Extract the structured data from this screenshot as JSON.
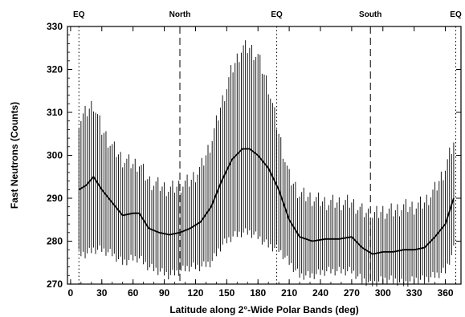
{
  "chart_data": {
    "type": "line",
    "title": "",
    "xlabel": "Latitude along 2°-Wide Polar Bands (deg)",
    "ylabel": "Fast Neutrons (Counts)",
    "xlim": [
      -3,
      375
    ],
    "ylim": [
      270,
      330
    ],
    "x_ticks": [
      0,
      30,
      60,
      90,
      120,
      150,
      180,
      210,
      240,
      270,
      300,
      330,
      360
    ],
    "y_ticks": [
      270,
      280,
      290,
      300,
      310,
      320,
      330
    ],
    "reference_lines": [
      {
        "x": 8,
        "label": "EQ",
        "style": "dotted"
      },
      {
        "x": 105,
        "label": "North",
        "style": "dashed"
      },
      {
        "x": 198,
        "label": "EQ",
        "style": "dotted"
      },
      {
        "x": 288,
        "label": "South",
        "style": "dashed"
      },
      {
        "x": 370,
        "label": "EQ",
        "style": "dotted"
      }
    ],
    "mean_curve": {
      "x": [
        8,
        15,
        22,
        30,
        40,
        50,
        60,
        66,
        75,
        85,
        95,
        105,
        115,
        125,
        135,
        145,
        155,
        165,
        172,
        180,
        190,
        200,
        210,
        220,
        232,
        245,
        258,
        270,
        280,
        290,
        300,
        310,
        320,
        330,
        340,
        350,
        360,
        368
      ],
      "y": [
        292,
        293,
        295,
        292,
        289,
        286,
        286.5,
        286.5,
        283,
        282,
        281.5,
        282,
        283,
        284.5,
        288,
        294,
        299,
        301.5,
        301.5,
        300,
        297,
        292,
        285,
        281,
        280,
        280.5,
        280.5,
        281,
        278.5,
        277,
        277.5,
        277.5,
        278,
        278,
        278.5,
        281,
        284,
        290
      ]
    },
    "error_bars": {
      "x": [
        8,
        15,
        22,
        30,
        40,
        50,
        60,
        66,
        75,
        85,
        95,
        105,
        115,
        125,
        135,
        145,
        155,
        165,
        172,
        180,
        190,
        200,
        210,
        220,
        232,
        245,
        258,
        270,
        280,
        290,
        300,
        310,
        320,
        330,
        340,
        350,
        360,
        368
      ],
      "upper": [
        308,
        310,
        312,
        306,
        302,
        299,
        298,
        298,
        294,
        293,
        292,
        293,
        294,
        297,
        303,
        312,
        320,
        325,
        325,
        323,
        316,
        305,
        295,
        291,
        290,
        289,
        289,
        289,
        287,
        286,
        287,
        287,
        288,
        288,
        289,
        292,
        297,
        303
      ],
      "lower": [
        277,
        277,
        278,
        278,
        277,
        275,
        276,
        276,
        274,
        273,
        272,
        273,
        274,
        274,
        275,
        279,
        281,
        282,
        282,
        281,
        279,
        278,
        275,
        272,
        272,
        273,
        273,
        273,
        271,
        270,
        271,
        271,
        270,
        271,
        271,
        272,
        273,
        278
      ]
    }
  }
}
